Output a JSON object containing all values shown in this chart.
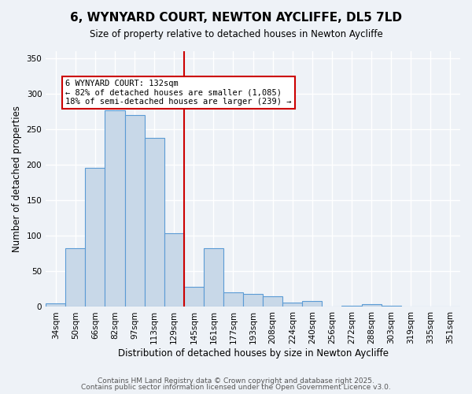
{
  "title": "6, WYNYARD COURT, NEWTON AYCLIFFE, DL5 7LD",
  "subtitle": "Size of property relative to detached houses in Newton Aycliffe",
  "xlabel": "Distribution of detached houses by size in Newton Aycliffe",
  "ylabel": "Number of detached properties",
  "categories": [
    "34sqm",
    "50sqm",
    "66sqm",
    "82sqm",
    "97sqm",
    "113sqm",
    "129sqm",
    "145sqm",
    "161sqm",
    "177sqm",
    "193sqm",
    "208sqm",
    "224sqm",
    "240sqm",
    "256sqm",
    "272sqm",
    "288sqm",
    "303sqm",
    "319sqm",
    "335sqm",
    "351sqm"
  ],
  "values": [
    5,
    83,
    196,
    277,
    270,
    238,
    104,
    28,
    83,
    20,
    18,
    15,
    6,
    8,
    1,
    2,
    4,
    2,
    1,
    1,
    1
  ],
  "bar_color": "#c8d8e8",
  "bar_edge_color": "#5b9bd5",
  "vline_color": "#cc0000",
  "vline_pos": 6.5,
  "annotation_title": "6 WYNYARD COURT: 132sqm",
  "annotation_line1": "← 82% of detached houses are smaller (1,085)",
  "annotation_line2": "18% of semi-detached houses are larger (239) →",
  "annotation_box_edge_color": "#cc0000",
  "footer1": "Contains HM Land Registry data © Crown copyright and database right 2025.",
  "footer2": "Contains public sector information licensed under the Open Government Licence v3.0.",
  "ylim": [
    0,
    360
  ],
  "yticks": [
    0,
    50,
    100,
    150,
    200,
    250,
    300,
    350
  ],
  "background_color": "#eef2f7",
  "plot_background": "#eef2f7",
  "grid_color": "#ffffff",
  "title_fontsize": 11,
  "subtitle_fontsize": 8.5,
  "axis_label_fontsize": 8.5,
  "tick_fontsize": 7.5,
  "annotation_fontsize": 7.5,
  "footer_fontsize": 6.5,
  "footer_color": "#555555"
}
